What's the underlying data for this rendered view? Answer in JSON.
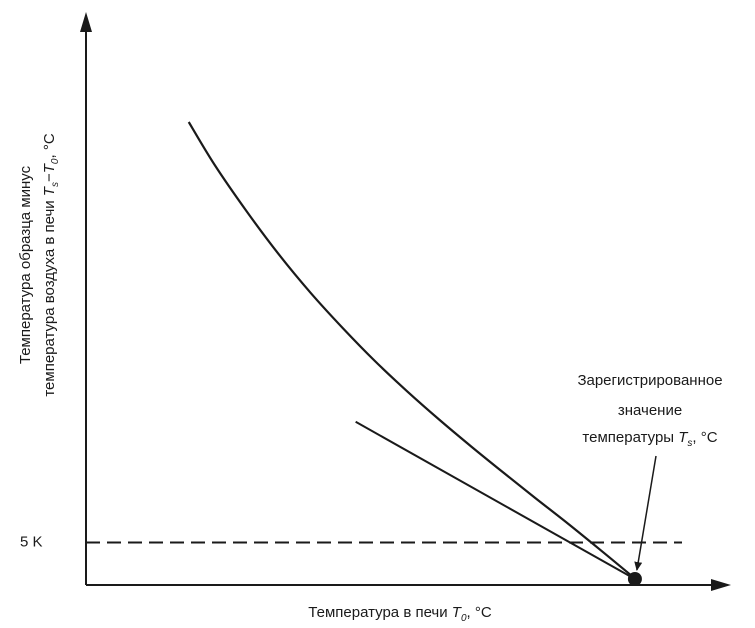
{
  "chart_data": {
    "type": "line",
    "title": "",
    "xlabel": {
      "prefix": "Температура в печи ",
      "symbol": "T",
      "sub": "0",
      "suffix": ", °C"
    },
    "ylabel": {
      "line1": "Температура образца минус",
      "line2_prefix": "температура воздуха в печи ",
      "sym1": "T",
      "sub1": "s",
      "dash": "−",
      "sym2": "T",
      "sub2": "0",
      "suffix": ", °C"
    },
    "xlim": [
      0,
      100
    ],
    "ylim": [
      0,
      100
    ],
    "grid": false,
    "threshold": {
      "label": "5 K",
      "y": 8
    },
    "series": [
      {
        "kind": "curve",
        "x": [
          16,
          20,
          25,
          30,
          35,
          40,
          45,
          50,
          55,
          60,
          65,
          70,
          75,
          80,
          85,
          85.5
        ],
        "y": [
          100,
          90.7,
          80.5,
          71.1,
          62.6,
          54.9,
          47.7,
          41.1,
          34.9,
          29.0,
          23.3,
          17.7,
          12.2,
          6.5,
          0.7,
          0
        ]
      },
      {
        "kind": "tangent",
        "x": [
          42,
          85.5
        ],
        "y": [
          34.4,
          0
        ]
      }
    ],
    "marker": {
      "x": 85.5,
      "y": 0
    },
    "annotation": {
      "line1": "Зарегистрированное",
      "line2": "значение",
      "line3_prefix": "температуры ",
      "symbol": "T",
      "sub": "s",
      "suffix": ", °C"
    }
  }
}
